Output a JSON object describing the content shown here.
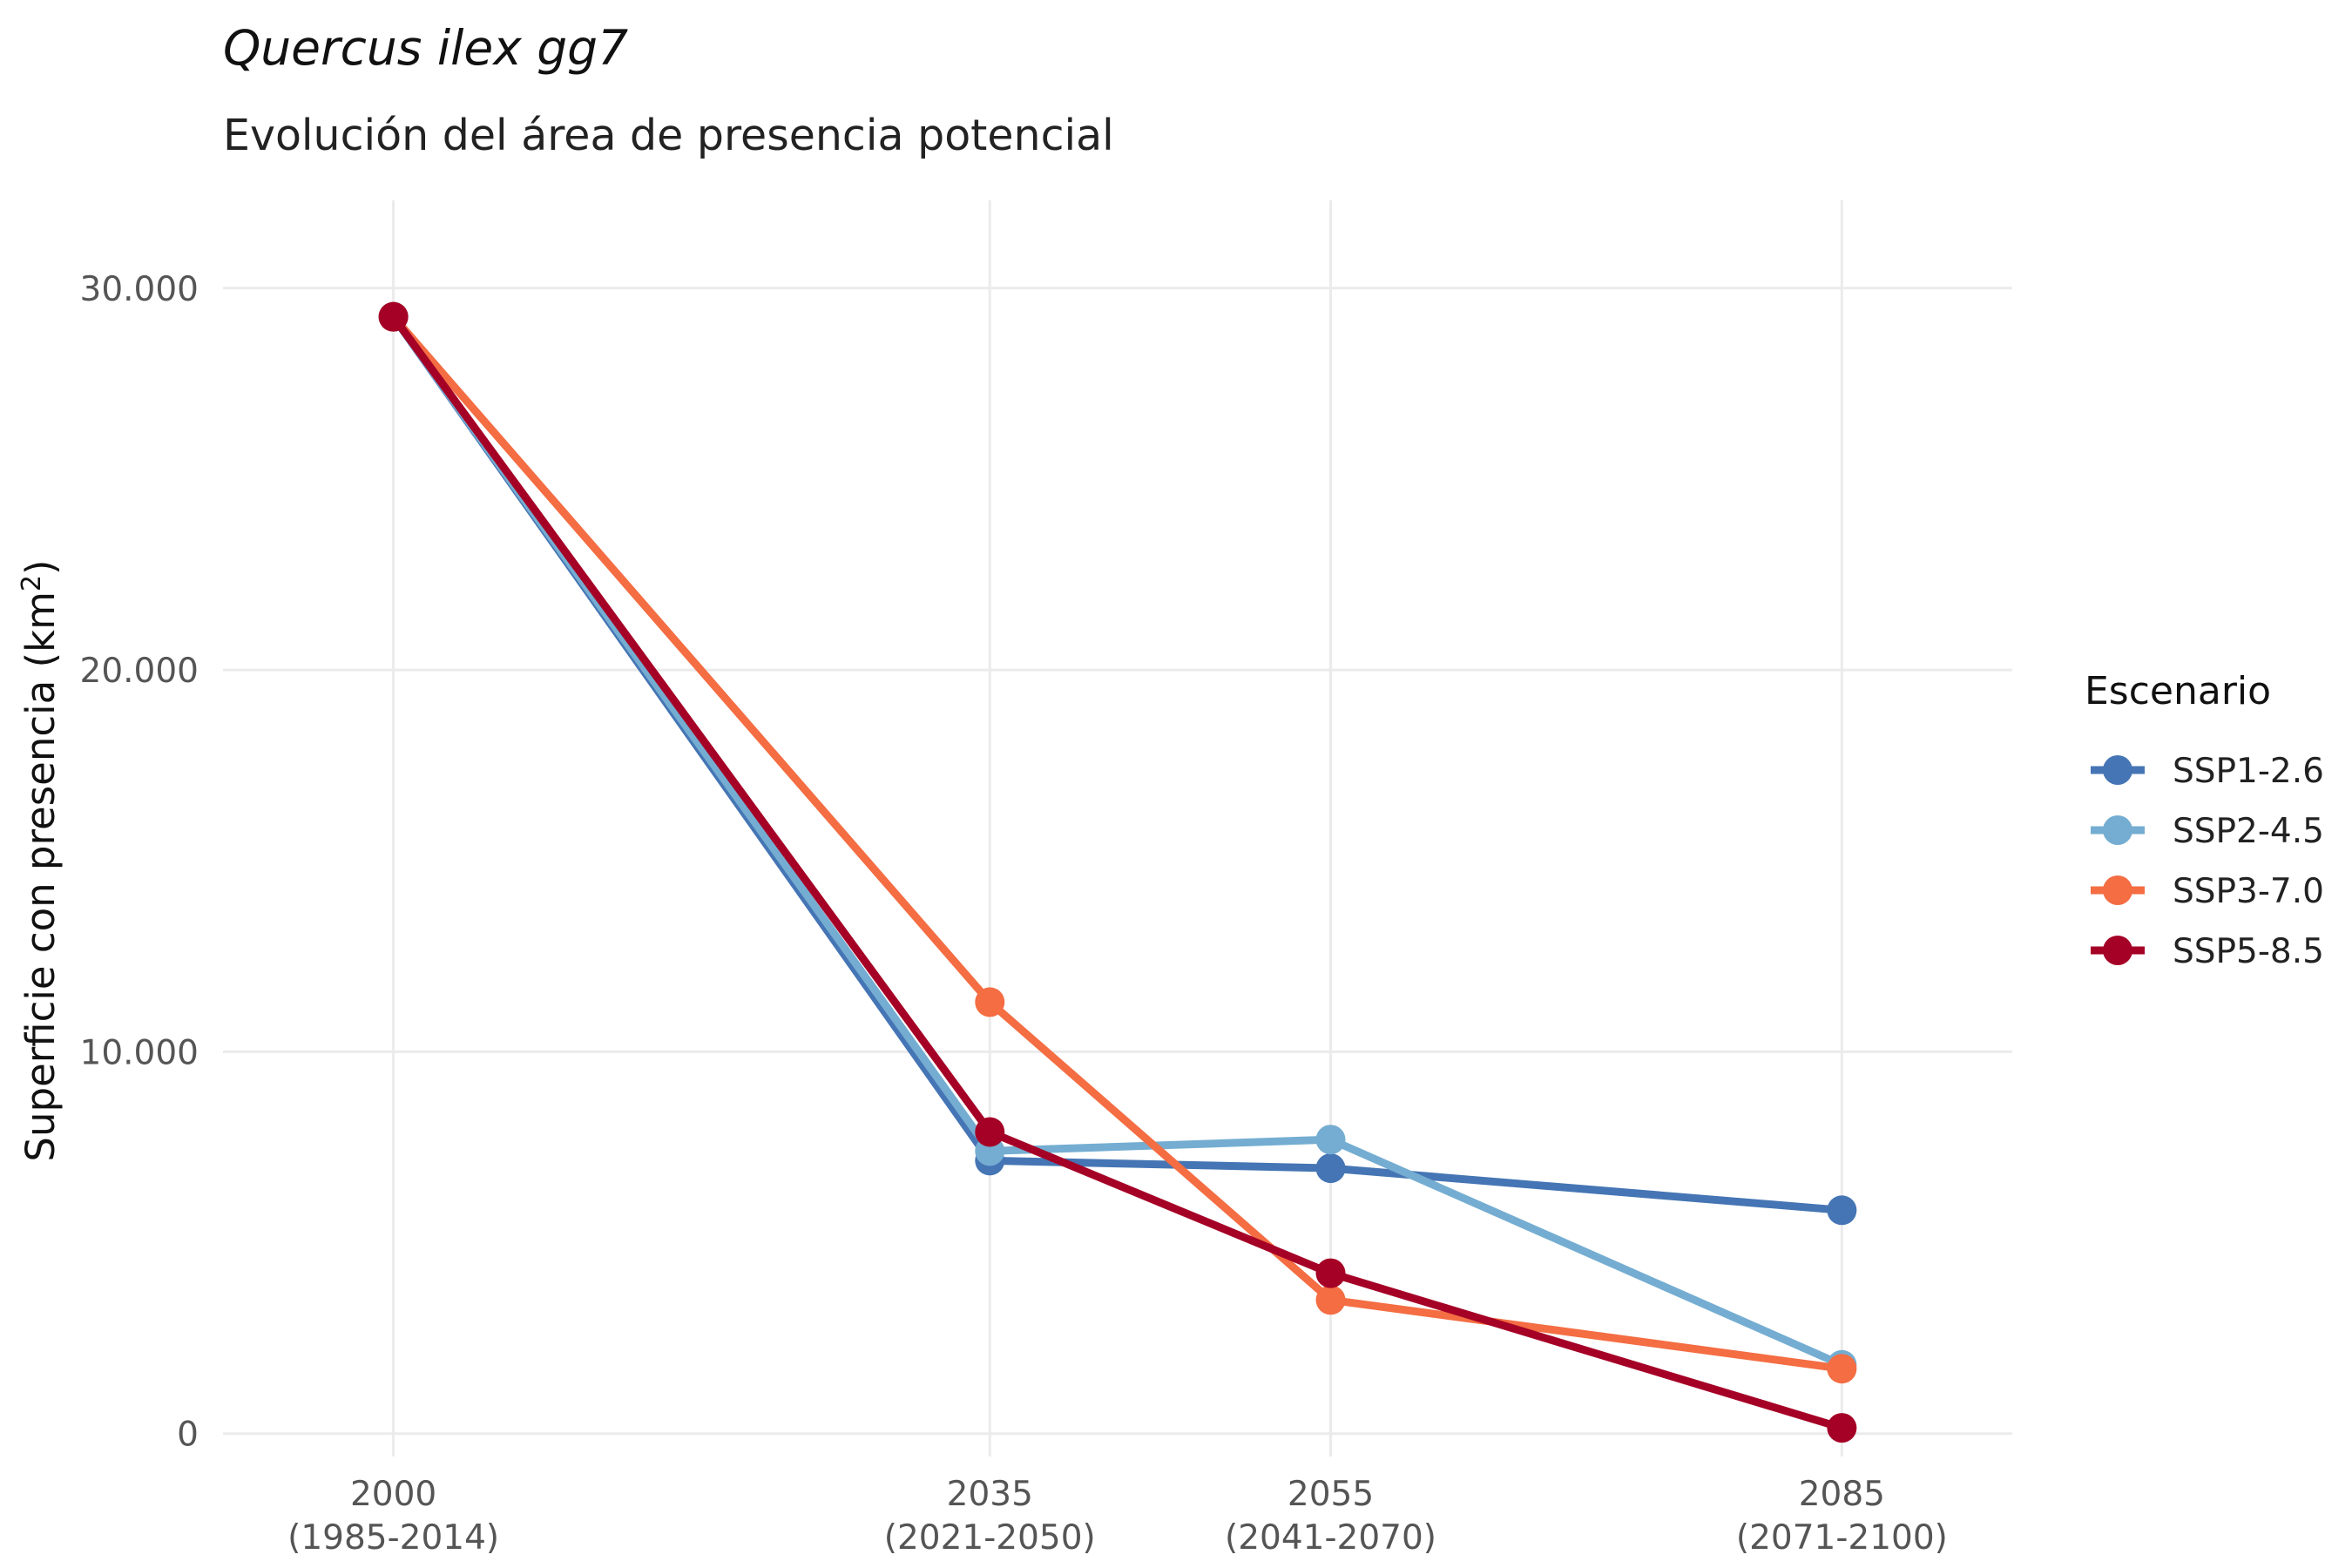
{
  "chart_data": {
    "type": "line",
    "title": "Quercus ilex gg7",
    "subtitle": "Evolución del área de presencia potencial",
    "ylabel_main": "Superficie con presencia (km",
    "ylabel_sup": "2",
    "ylabel_end": ")",
    "xlabel": "",
    "x": [
      2000,
      2035,
      2055,
      2085
    ],
    "x_tick_labels": [
      {
        "year": "2000",
        "period": "(1985-2014)"
      },
      {
        "year": "2035",
        "period": "(2021-2050)"
      },
      {
        "year": "2055",
        "period": "(2041-2070)"
      },
      {
        "year": "2085",
        "period": "(2071-2100)"
      }
    ],
    "xlim": [
      1990,
      2095
    ],
    "ylim": [
      0,
      30000
    ],
    "y_ticks": [
      0,
      10000,
      20000,
      30000
    ],
    "y_tick_labels": [
      "0",
      "10.000",
      "20.000",
      "30.000"
    ],
    "grid": true,
    "legend_title": "Escenario",
    "legend_position": "right",
    "series": [
      {
        "name": "SSP1-2.6",
        "color": "#4575b4",
        "values": [
          29250,
          7150,
          6950,
          5850
        ]
      },
      {
        "name": "SSP2-4.5",
        "color": "#74add1",
        "values": [
          29250,
          7400,
          7700,
          1800
        ]
      },
      {
        "name": "SSP3-7.0",
        "color": "#f46d43",
        "values": [
          29250,
          11300,
          3500,
          1700
        ]
      },
      {
        "name": "SSP5-8.5",
        "color": "#a50026",
        "values": [
          29250,
          7900,
          4200,
          150
        ]
      }
    ]
  }
}
